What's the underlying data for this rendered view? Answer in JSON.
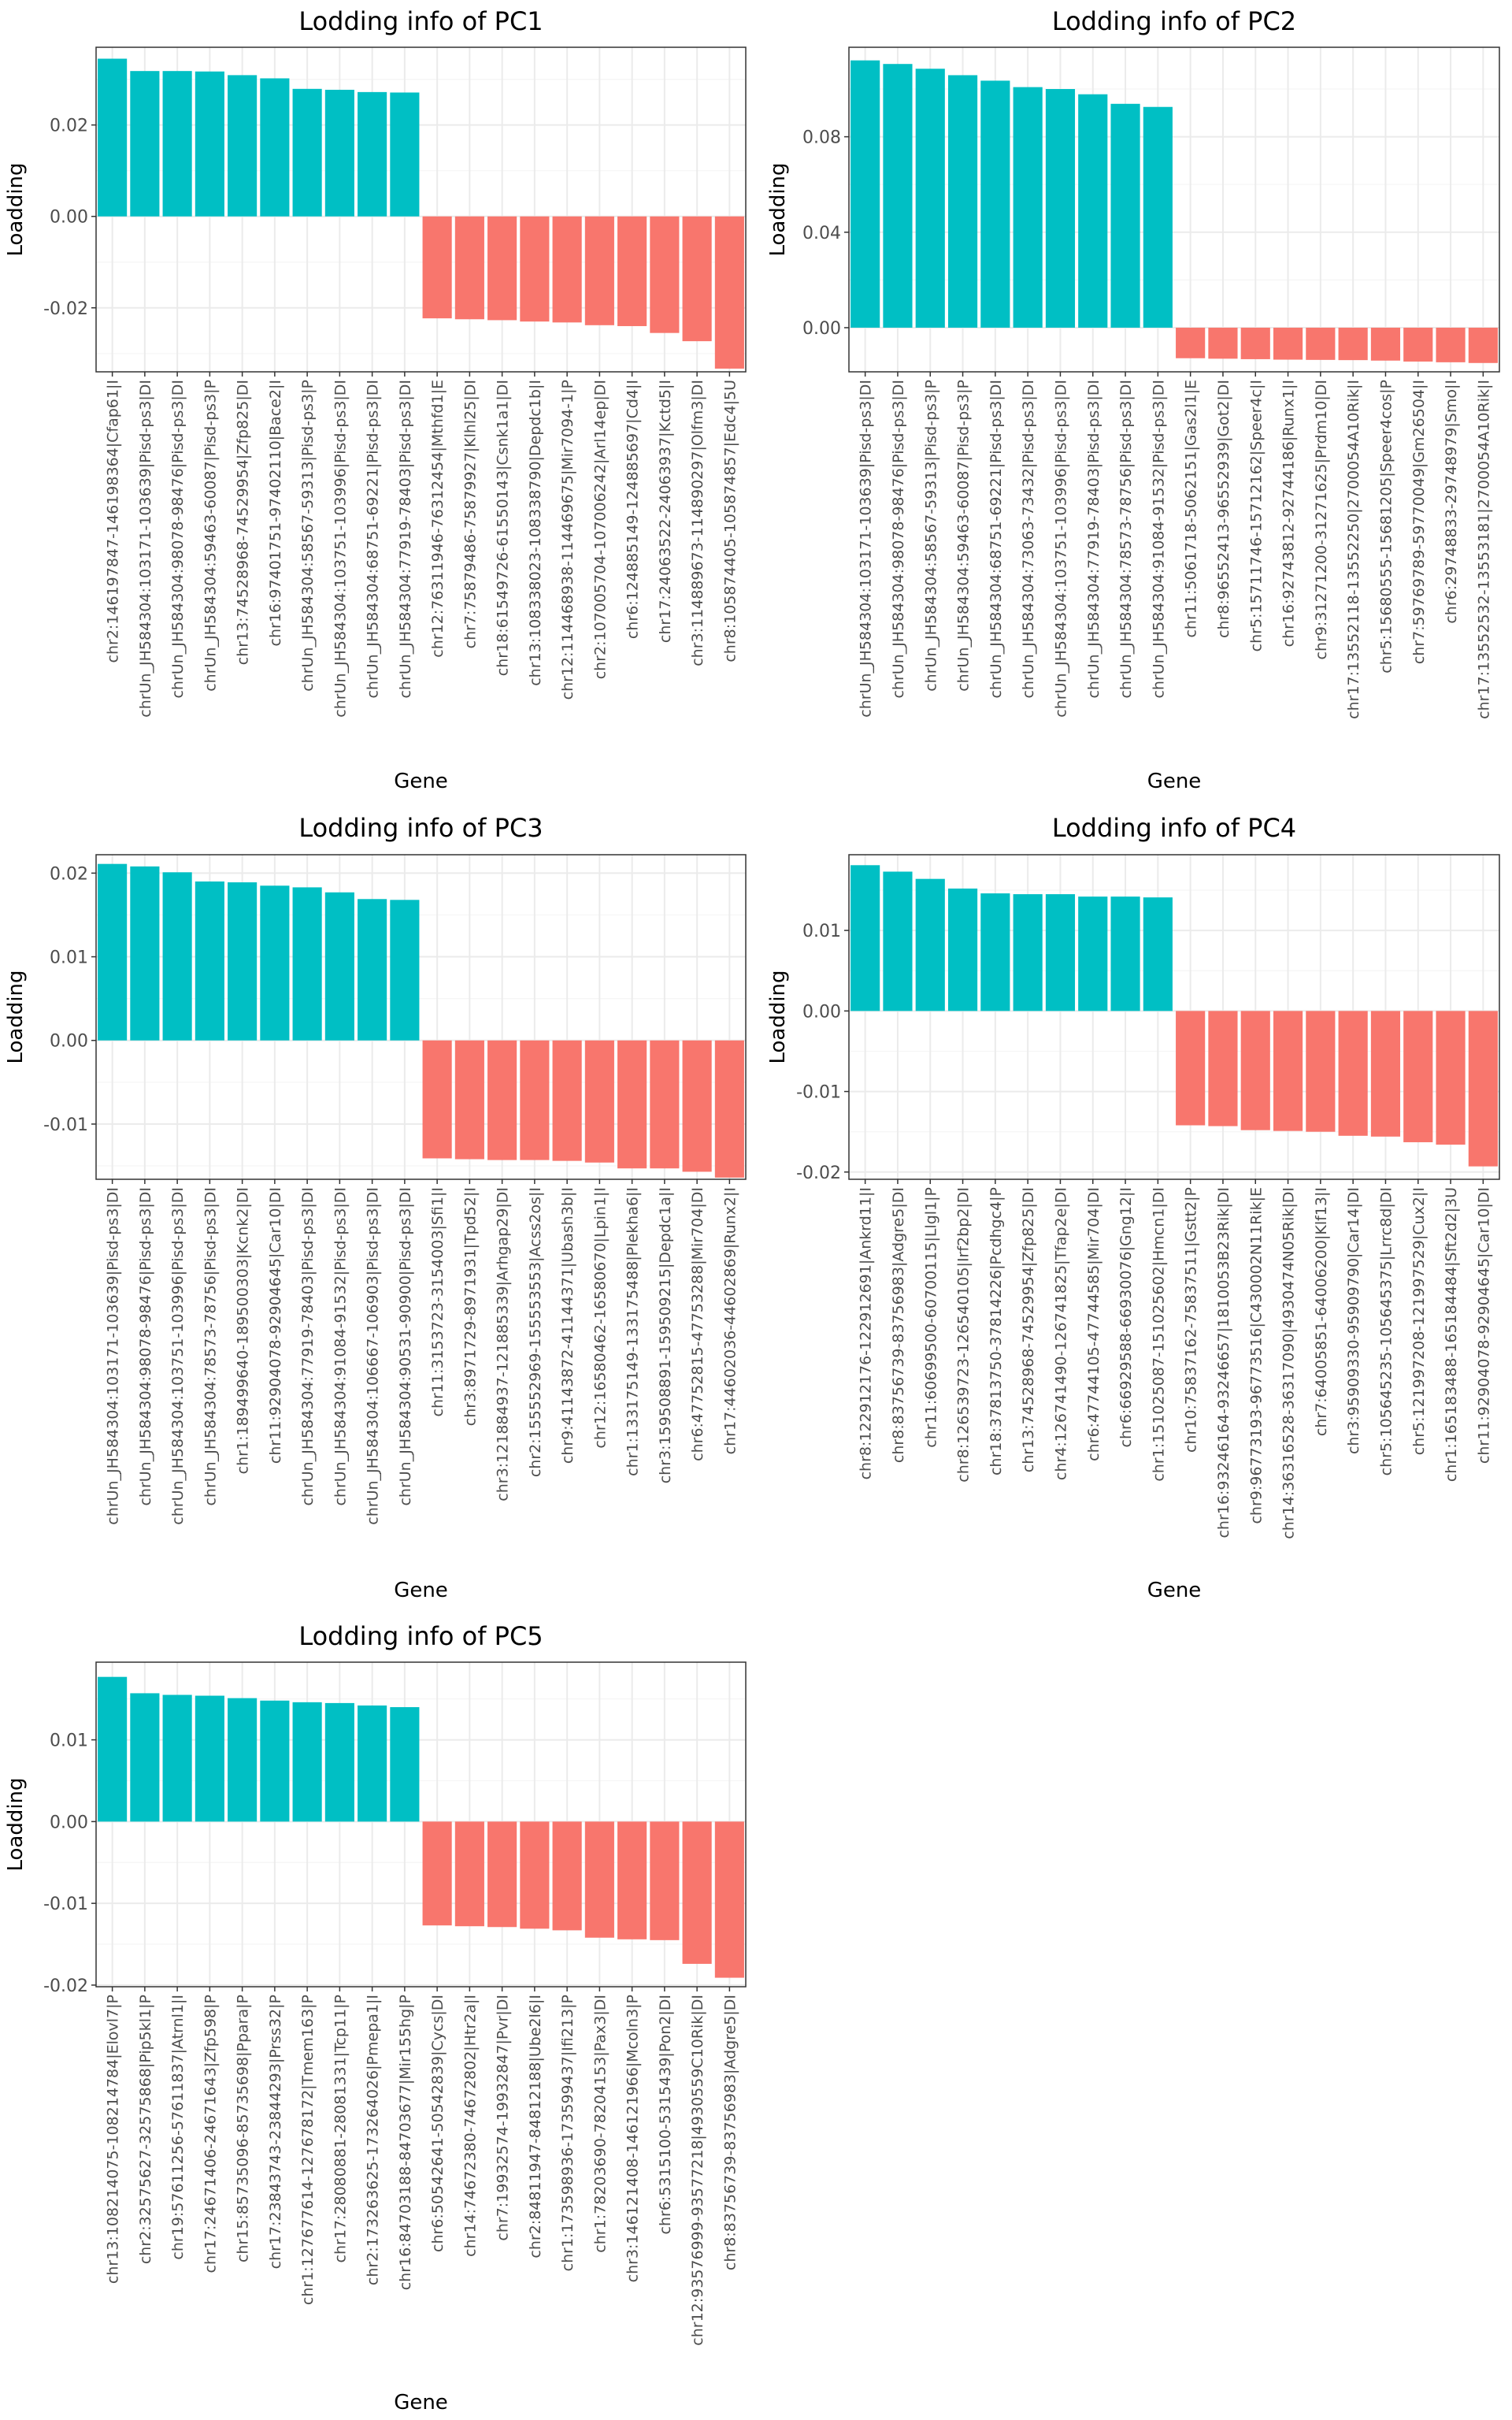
{
  "colors": {
    "positive": "#00BFC4",
    "negative": "#F8766D",
    "grid_major": "#ebebeb",
    "grid_minor": "#f5f5f5",
    "panel_border": "#333333"
  },
  "chart_data": [
    {
      "type": "bar",
      "title": "Lodding info of PC1",
      "xlabel": "Gene",
      "ylabel": "Loadding",
      "ylim": [
        -0.034,
        0.037
      ],
      "ytick_values": [
        -0.02,
        0.0,
        0.02
      ],
      "ytick_labels": [
        "-0.02",
        "0.00",
        "0.02"
      ],
      "grid": true,
      "categories": [
        "chr2:146197847-146198364|Cfap61|I",
        "chrUn_JH584304:103171-103639|Pisd-ps3|DI",
        "chrUn_JH584304:98078-98476|Pisd-ps3|DI",
        "chrUn_JH584304:59463-60087|Pisd-ps3|P",
        "chr13:74528968-74529954|Zfp825|DI",
        "chr16:97401751-97402110|Bace2|I",
        "chrUn_JH584304:58567-59313|Pisd-ps3|P",
        "chrUn_JH584304:103751-103996|Pisd-ps3|DI",
        "chrUn_JH584304:68751-69221|Pisd-ps3|DI",
        "chrUn_JH584304:77919-78403|Pisd-ps3|DI",
        "chr12:76311946-76312454|Mthfd1|E",
        "chr7:75879486-75879927|Klhl25|DI",
        "chr18:61549726-61550143|Csnk1a1|DI",
        "chr13:108338023-108338790|Depdc1b|I",
        "chr12:114468938-114469675|Mir7094-1|P",
        "chr2:107005704-107006242|Arl14ep|DI",
        "chr6:124885149-124885697|Cd4|I",
        "chr17:24063522-24063937|Kctd5|I",
        "chr3:114889673-114890297|Olfm3|DI",
        "chr8:105874405-105874857|Edc4|5U"
      ],
      "values": [
        0.0345,
        0.0318,
        0.0318,
        0.0317,
        0.0309,
        0.0302,
        0.0279,
        0.0277,
        0.0272,
        0.0271,
        -0.0223,
        -0.0225,
        -0.0227,
        -0.023,
        -0.0232,
        -0.0238,
        -0.024,
        -0.0255,
        -0.0273,
        -0.0333
      ]
    },
    {
      "type": "bar",
      "title": "Lodding info of PC2",
      "xlabel": "Gene",
      "ylabel": "Loadding",
      "ylim": [
        -0.0185,
        0.1175
      ],
      "ytick_values": [
        0.0,
        0.04,
        0.08
      ],
      "ytick_labels": [
        "0.00",
        "0.04",
        "0.08"
      ],
      "grid": true,
      "categories": [
        "chrUn_JH584304:103171-103639|Pisd-ps3|DI",
        "chrUn_JH584304:98078-98476|Pisd-ps3|DI",
        "chrUn_JH584304:58567-59313|Pisd-ps3|P",
        "chrUn_JH584304:59463-60087|Pisd-ps3|P",
        "chrUn_JH584304:68751-69221|Pisd-ps3|DI",
        "chrUn_JH584304:73063-73432|Pisd-ps3|DI",
        "chrUn_JH584304:103751-103996|Pisd-ps3|DI",
        "chrUn_JH584304:77919-78403|Pisd-ps3|DI",
        "chrUn_JH584304:78573-78756|Pisd-ps3|DI",
        "chrUn_JH584304:91084-91532|Pisd-ps3|DI",
        "chr11:5061718-5062151|Gas2l1|E",
        "chr8:96552413-96552939|Got2|DI",
        "chr5:15711746-15712162|Speer4c|I",
        "chr16:92743812-92744186|Runx1|I",
        "chr9:31271200-31271625|Prdm10|DI",
        "chr17:13552118-13552250|2700054A10Rik|I",
        "chr5:15680555-15681205|Speer4cos|P",
        "chr7:59769789-59770049|Gm26504|I",
        "chr6:29748833-29748979|Smo|I",
        "chr17:13552532-13553181|2700054A10Rik|I"
      ],
      "values": [
        0.112,
        0.1105,
        0.1085,
        0.1058,
        0.1035,
        0.1008,
        0.1,
        0.0978,
        0.0938,
        0.0925,
        -0.0128,
        -0.013,
        -0.0132,
        -0.0134,
        -0.0135,
        -0.0136,
        -0.0138,
        -0.0142,
        -0.0145,
        -0.0148
      ]
    },
    {
      "type": "bar",
      "title": "Lodding info of PC3",
      "xlabel": "Gene",
      "ylabel": "Loadding",
      "ylim": [
        -0.0166,
        0.0222
      ],
      "ytick_values": [
        -0.01,
        0.0,
        0.01,
        0.02
      ],
      "ytick_labels": [
        "-0.01",
        "0.00",
        "0.01",
        "0.02"
      ],
      "grid": true,
      "categories": [
        "chrUn_JH584304:103171-103639|Pisd-ps3|DI",
        "chrUn_JH584304:98078-98476|Pisd-ps3|DI",
        "chrUn_JH584304:103751-103996|Pisd-ps3|DI",
        "chrUn_JH584304:78573-78756|Pisd-ps3|DI",
        "chr1:189499640-189500303|Kcnk2|DI",
        "chr11:92904078-92904645|Car10|DI",
        "chrUn_JH584304:77919-78403|Pisd-ps3|DI",
        "chrUn_JH584304:91084-91532|Pisd-ps3|DI",
        "chrUn_JH584304:106667-106903|Pisd-ps3|DI",
        "chrUn_JH584304:90531-90900|Pisd-ps3|DI",
        "chr11:3153723-3154003|Sfi1|I",
        "chr3:8971729-8971931|Tpd52|I",
        "chr3:121884937-121885339|Arhgap29|DI",
        "chr2:155552969-155553553|Acss2os|I",
        "chr9:41143872-41144371|Ubash3b|I",
        "chr12:16580462-16580670|Lpin1|I",
        "chr1:133175149-133175488|Plekha6|I",
        "chr3:159508891-159509215|Depdc1a|I",
        "chr6:47752815-47753288|Mir704|DI",
        "chr17:44602036-44602869|Runx2|I"
      ],
      "values": [
        0.0211,
        0.0208,
        0.0201,
        0.019,
        0.0189,
        0.0185,
        0.0183,
        0.0177,
        0.0169,
        0.0168,
        -0.0141,
        -0.0142,
        -0.0143,
        -0.0143,
        -0.0144,
        -0.0146,
        -0.0153,
        -0.0153,
        -0.0157,
        -0.0164
      ]
    },
    {
      "type": "bar",
      "title": "Lodding info of PC4",
      "xlabel": "Gene",
      "ylabel": "Loadding",
      "ylim": [
        -0.0209,
        0.0194
      ],
      "ytick_values": [
        -0.02,
        -0.01,
        0.0,
        0.01
      ],
      "ytick_labels": [
        "-0.02",
        "-0.01",
        "0.00",
        "0.01"
      ],
      "grid": true,
      "categories": [
        "chr8:122912176-122912691|Ankrd11|I",
        "chr8:83756739-83756983|Adgre5|DI",
        "chr11:60699500-60700115|Llgl1|P",
        "chr8:126539723-126540105|Irf2bp2|DI",
        "chr18:37813750-37814226|Pcdhgc4|P",
        "chr13:74528968-74529954|Zfp825|DI",
        "chr4:126741490-126741825|Tfap2e|DI",
        "chr6:47744105-47744585|Mir704|DI",
        "chr6:66929588-66930076|Gng12|I",
        "chr1:151025087-151025602|Hmcn1|DI",
        "chr10:75837162-75837511|Gstt2|P",
        "chr16:93246164-93246657|1810053B23Rik|DI",
        "chr9:96773193-96773516|C430002N11Rik|E",
        "chr14:36316528-36317090|4930474N05Rik|DI",
        "chr7:64005851-64006200|Klf13|I",
        "chr3:95909330-95909790|Car14|DI",
        "chr5:105645235-105645375|Lrrc8d|DI",
        "chr5:121997208-121997529|Cux2|I",
        "chr1:165183488-165184484|Sft2d2|3U",
        "chr11:92904078-92904645|Car10|DI"
      ],
      "values": [
        0.0181,
        0.0173,
        0.0164,
        0.0152,
        0.0146,
        0.0145,
        0.0145,
        0.0142,
        0.0142,
        0.0141,
        -0.0142,
        -0.0143,
        -0.0148,
        -0.0149,
        -0.015,
        -0.0155,
        -0.0156,
        -0.0163,
        -0.0166,
        -0.0193
      ]
    },
    {
      "type": "bar",
      "title": "Lodding info of PC5",
      "xlabel": "Gene",
      "ylabel": "Loadding",
      "ylim": [
        -0.0202,
        0.0195
      ],
      "ytick_values": [
        -0.02,
        -0.01,
        0.0,
        0.01
      ],
      "ytick_labels": [
        "-0.02",
        "-0.01",
        "0.00",
        "0.01"
      ],
      "grid": true,
      "categories": [
        "chr13:108214075-108214784|Elovl7|P",
        "chr2:32575627-32575868|Pip5kl1|P",
        "chr19:57611256-57611837|Atrnl1|I",
        "chr17:24671406-24671643|Zfp598|P",
        "chr15:85735096-85735698|Ppara|P",
        "chr17:23843743-23844293|Prss32|P",
        "chr1:127677614-127678172|Tmem163|P",
        "chr17:28080881-28081331|Tcp11|P",
        "chr2:173263625-173264026|Pmepa1|I",
        "chr16:84703188-84703677|Mir155hg|P",
        "chr6:50542641-50542839|Cycs|DI",
        "chr14:74672380-74672802|Htr2a|I",
        "chr7:19932574-19932847|Pvr|DI",
        "chr2:84811947-84812188|Ube2l6|I",
        "chr1:173598936-173599437|Ifi213|P",
        "chr1:78203690-78204153|Pax3|DI",
        "chr3:146121408-146121966|Mcoln3|P",
        "chr6:5315100-5315439|Pon2|DI",
        "chr12:93576999-93577218|4930559C10Rik|DI",
        "chr8:83756739-83756983|Adgre5|DI"
      ],
      "values": [
        0.0177,
        0.0157,
        0.0155,
        0.0154,
        0.0151,
        0.0148,
        0.0146,
        0.0145,
        0.0142,
        0.014,
        -0.0127,
        -0.0128,
        -0.0129,
        -0.0131,
        -0.0133,
        -0.0142,
        -0.0144,
        -0.0145,
        -0.0174,
        -0.0191
      ]
    }
  ]
}
